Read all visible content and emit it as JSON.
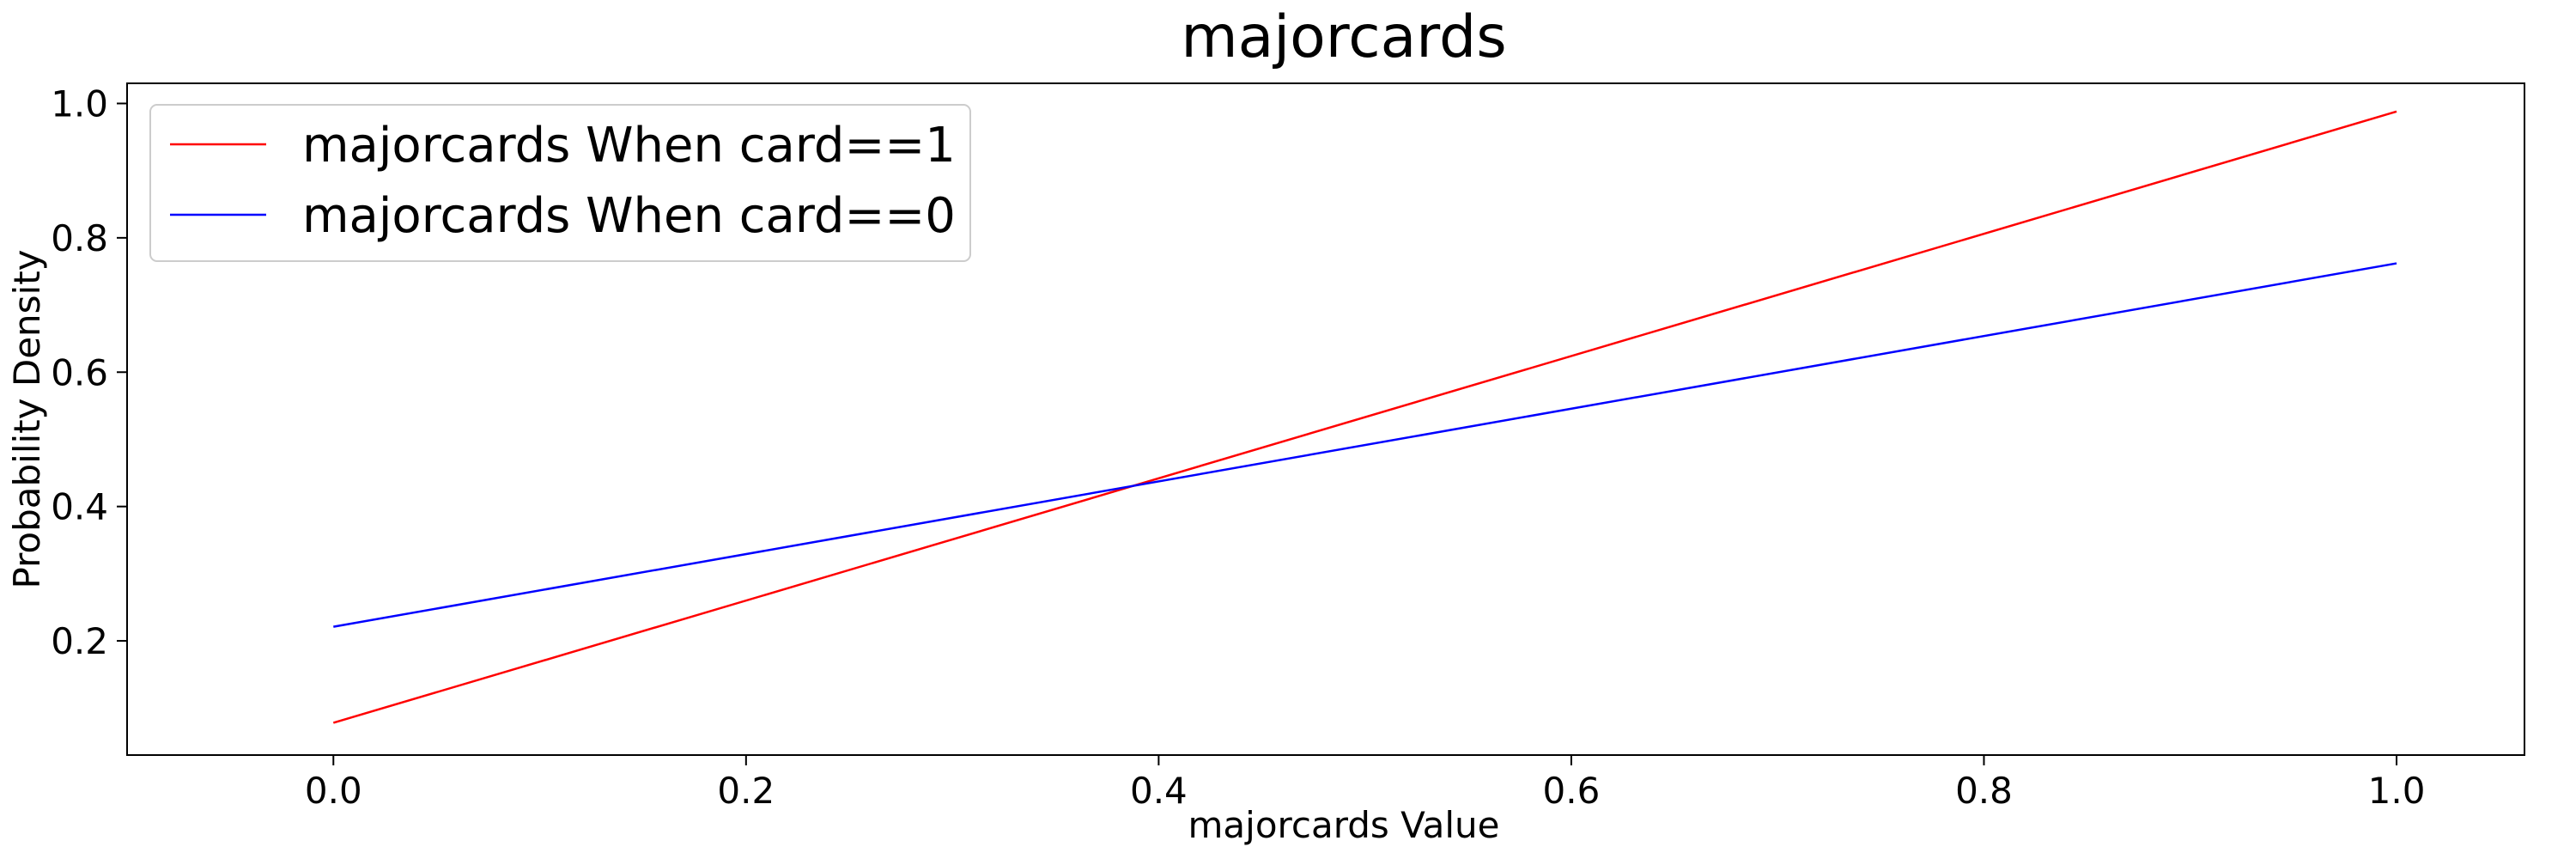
{
  "chart_data": {
    "type": "line",
    "title": "majorcards",
    "xlabel": "majorcards Value",
    "ylabel": "Probability Density",
    "xlim": [
      -0.1,
      1.062
    ],
    "ylim": [
      0.03,
      1.03
    ],
    "xticks": [
      0.0,
      0.2,
      0.4,
      0.6,
      0.8,
      1.0
    ],
    "xtick_labels": [
      "0.0",
      "0.2",
      "0.4",
      "0.6",
      "0.8",
      "1.0"
    ],
    "yticks": [
      0.2,
      0.4,
      0.6,
      0.8,
      1.0
    ],
    "ytick_labels": [
      "0.2",
      "0.4",
      "0.6",
      "0.8",
      "1.0"
    ],
    "grid": false,
    "legend_position": "top-left",
    "series": [
      {
        "name": "majorcards When card==1",
        "color": "#ff0000",
        "x": [
          0.0,
          1.0
        ],
        "y": [
          0.078,
          0.988
        ]
      },
      {
        "name": "majorcards When card==0",
        "color": "#0000ff",
        "x": [
          0.0,
          1.0
        ],
        "y": [
          0.221,
          0.762
        ]
      }
    ]
  }
}
